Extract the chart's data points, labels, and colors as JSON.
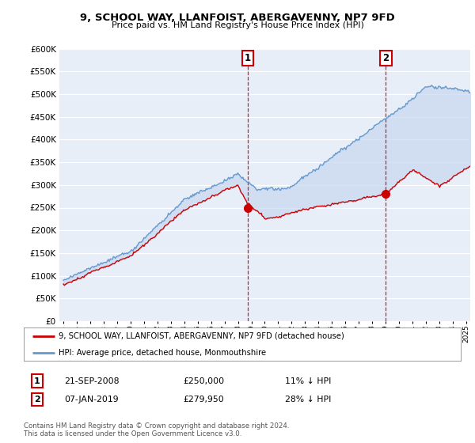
{
  "title": "9, SCHOOL WAY, LLANFOIST, ABERGAVENNY, NP7 9FD",
  "subtitle": "Price paid vs. HM Land Registry's House Price Index (HPI)",
  "legend_label_red": "9, SCHOOL WAY, LLANFOIST, ABERGAVENNY, NP7 9FD (detached house)",
  "legend_label_blue": "HPI: Average price, detached house, Monmouthshire",
  "transaction1_date": "21-SEP-2008",
  "transaction1_price": "£250,000",
  "transaction1_pct": "11% ↓ HPI",
  "transaction2_date": "07-JAN-2019",
  "transaction2_price": "£279,950",
  "transaction2_pct": "28% ↓ HPI",
  "footer": "Contains HM Land Registry data © Crown copyright and database right 2024.\nThis data is licensed under the Open Government Licence v3.0.",
  "ylim": [
    0,
    600000
  ],
  "yticks": [
    0,
    50000,
    100000,
    150000,
    200000,
    250000,
    300000,
    350000,
    400000,
    450000,
    500000,
    550000,
    600000
  ],
  "background_color": "#ffffff",
  "plot_bg_color": "#e8eef8",
  "grid_color": "#ffffff",
  "red_color": "#cc0000",
  "blue_color": "#6699cc",
  "fill_color": "#c8d8f0",
  "vline_color": "#cc0000",
  "transaction1_x": 2008.72,
  "transaction1_y": 250000,
  "transaction2_x": 2019.02,
  "transaction2_y": 279950,
  "xmin": 1995,
  "xmax": 2025.3
}
